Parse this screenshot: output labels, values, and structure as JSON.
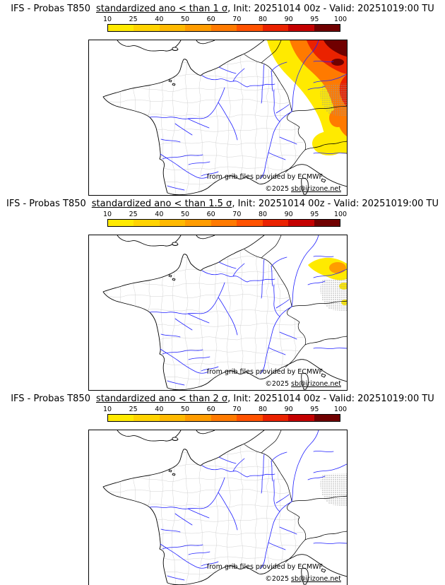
{
  "panels": [
    {
      "title_prefix": "IFS - Probas T850",
      "title_mid": "standardized ano < than 1 σ",
      "title_suffix": ", Init: 20251014 00z - Valid: 20251019:00 TU",
      "attribution": "from grib files provided by ECMWF",
      "copyright": "©2025 ",
      "copyright_link": "sb@irizone.net"
    },
    {
      "title_prefix": "IFS - Probas T850",
      "title_mid": "standardized ano < than 1.5 σ",
      "title_suffix": ", Init: 20251014 00z - Valid: 20251019:00 TU",
      "attribution": "from grib files provided by ECMWF",
      "copyright": "©2025 ",
      "copyright_link": "sb@irizone.net"
    },
    {
      "title_prefix": "IFS - Probas T850",
      "title_mid": "standardized ano < than 2 σ",
      "title_suffix": ", Init: 20251014 00z - Valid: 20251019:00 TU",
      "attribution": "from grib files provided by ECMWF",
      "copyright": "©2025 ",
      "copyright_link": "sb@irizone.net"
    }
  ],
  "colorbar": {
    "labels": [
      "10",
      "25",
      "40",
      "50",
      "60",
      "70",
      "80",
      "90",
      "95",
      "100"
    ],
    "colors": [
      "#ffea00",
      "#ffd300",
      "#ffb900",
      "#ff9c00",
      "#ff7a00",
      "#ff5200",
      "#ea2200",
      "#c40000",
      "#700000"
    ]
  },
  "map": {
    "river_color": "#2020ff",
    "coast_color": "#000000",
    "admin_color": "#d2d2d2",
    "sea_color": "#ffffff",
    "stipple_color": "#9a9a9a"
  }
}
